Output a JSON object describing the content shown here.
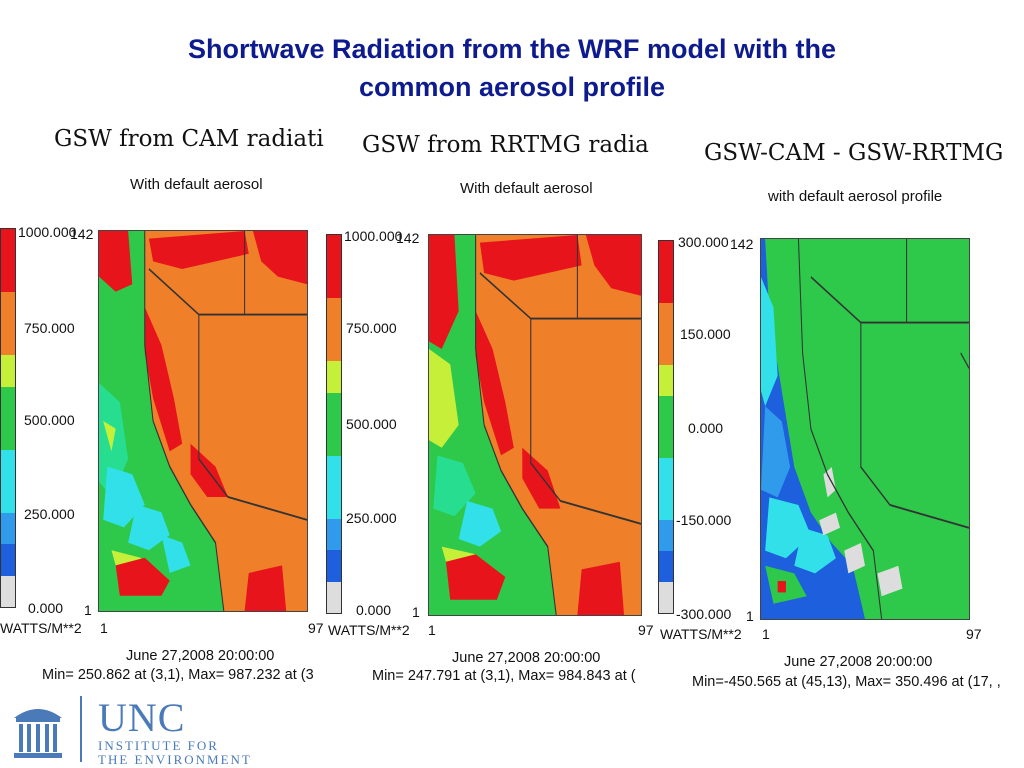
{
  "slide": {
    "title_line1": "Shortwave Radiation from the WRF model with the",
    "title_line2": "common aerosol profile"
  },
  "colors": {
    "title": "#0d1b8f",
    "red": "#e8141b",
    "orange": "#f07f2a",
    "yellow_green": "#c6ef3a",
    "green": "#2ec84a",
    "aqua_green": "#27dd8f",
    "cyan": "#31e0e8",
    "light_blue": "#2f9bea",
    "blue": "#1d5fdc",
    "gray": "#dddddd",
    "logo_blue": "#4a7ab8"
  },
  "panels": [
    {
      "title": "GSW from CAM radiati",
      "subtitle": "With default aerosol",
      "ticks": [
        "1000.000",
        "750.000",
        "500.000",
        "250.000",
        "0.000"
      ],
      "axis_top": "142",
      "axis_y_bottom": "1",
      "axis_x_left": "1",
      "axis_x_right": "97",
      "unit": "WATTS/M**2",
      "date": "June 27,2008 20:00:00",
      "minmax": "Min= 250.862 at (3,1), Max= 987.232 at (3"
    },
    {
      "title": "GSW from RRTMG radia",
      "subtitle": "With default aerosol",
      "ticks": [
        "1000.000",
        "750.000",
        "500.000",
        "250.000",
        "0.000"
      ],
      "axis_top": "142",
      "axis_y_bottom": "1",
      "axis_x_left": "1",
      "axis_x_right": "97",
      "unit": "WATTS/M**2",
      "date": "June 27,2008 20:00:00",
      "minmax": "Min= 247.791 at (3,1), Max= 984.843 at ("
    },
    {
      "title": "GSW-CAM - GSW-RRTMG",
      "subtitle": "with default aerosol profile",
      "ticks": [
        "300.000",
        "150.000",
        "0.000",
        "-150.000",
        "-300.000"
      ],
      "axis_top": "142",
      "axis_y_bottom": "1",
      "axis_x_left": "1",
      "axis_x_right": "97",
      "unit": "WATTS/M**2",
      "date": "June 27,2008 20:00:00",
      "minmax": "Min=-450.565 at (45,13), Max= 350.496 at (17, ,"
    }
  ],
  "logo": {
    "name": "UNC",
    "line1": "INSTITUTE FOR",
    "line2": "THE ENVIRONMENT"
  }
}
